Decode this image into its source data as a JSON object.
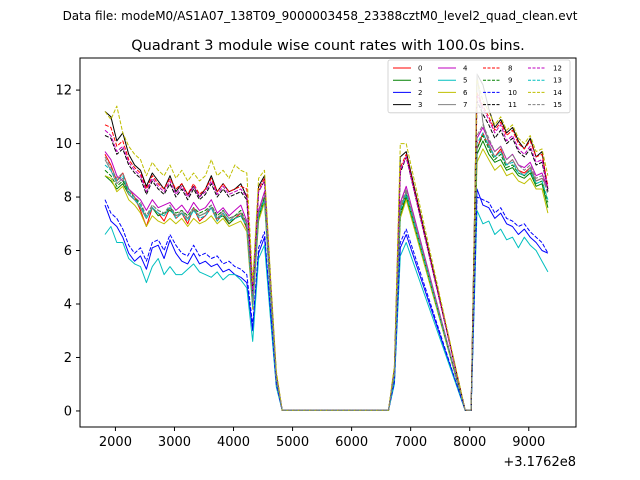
{
  "file_label": "Data file: modeM0/AS1A07_138T09_9000003458_23388cztM0_level2_quad_clean.evt",
  "chart_data": {
    "type": "line",
    "title": "Quadrant 3 module wise count rates with 100.0s bins.",
    "xlabel": "",
    "ylabel": "",
    "x_offset_label": "+3.1762e8",
    "xlim": [
      1400,
      9800
    ],
    "ylim": [
      -0.6,
      13.2
    ],
    "xticks": [
      2000,
      3000,
      4000,
      5000,
      6000,
      7000,
      8000,
      9000
    ],
    "xtick_labels": [
      "2000",
      "3000",
      "4000",
      "5000",
      "6000",
      "7000",
      "8000",
      "9000"
    ],
    "yticks": [
      0,
      2,
      4,
      6,
      8,
      10,
      12
    ],
    "ytick_labels": [
      "0",
      "2",
      "4",
      "6",
      "8",
      "10",
      "12"
    ],
    "x": [
      1824,
      1924,
      2024,
      2124,
      2224,
      2324,
      2424,
      2524,
      2624,
      2724,
      2824,
      2924,
      3024,
      3124,
      3224,
      3324,
      3424,
      3524,
      3624,
      3724,
      3824,
      3924,
      4024,
      4124,
      4224,
      4324,
      4424,
      4524,
      4624,
      4724,
      4824,
      6624,
      6724,
      6824,
      6924,
      7924,
      8024,
      8124,
      8224,
      8324,
      8424,
      8524,
      8624,
      8724,
      8824,
      8924,
      9024,
      9124,
      9224,
      9324
    ],
    "series": [
      {
        "name": "0",
        "color": "#ff0000",
        "dash": false,
        "values": [
          9.6,
          9.2,
          8.6,
          8.9,
          8.3,
          8.0,
          7.5,
          6.9,
          7.6,
          7.4,
          7.1,
          7.6,
          7.2,
          7.4,
          7.0,
          7.6,
          7.1,
          7.3,
          7.6,
          7.1,
          7.4,
          7.0,
          7.2,
          7.4,
          6.8,
          4.0,
          7.3,
          8.0,
          4.5,
          1.2,
          0.02,
          0.02,
          1.4,
          7.5,
          8.2,
          0.02,
          0.02,
          9.8,
          10.4,
          9.9,
          9.5,
          9.8,
          9.2,
          9.4,
          9.0,
          8.9,
          9.1,
          8.6,
          8.7,
          8.5
        ]
      },
      {
        "name": "1",
        "color": "#008000",
        "dash": false,
        "values": [
          8.8,
          8.6,
          8.3,
          8.5,
          8.1,
          7.9,
          7.6,
          7.2,
          7.6,
          7.3,
          7.4,
          7.5,
          7.3,
          7.4,
          7.2,
          7.5,
          7.3,
          7.4,
          7.6,
          7.2,
          7.3,
          7.0,
          7.2,
          7.3,
          6.9,
          3.9,
          7.2,
          7.9,
          4.4,
          1.2,
          0.02,
          0.02,
          1.3,
          7.3,
          8.0,
          0.02,
          0.02,
          9.6,
          10.1,
          9.6,
          9.3,
          9.4,
          9.0,
          9.1,
          8.8,
          8.7,
          8.9,
          8.4,
          8.5,
          7.6
        ]
      },
      {
        "name": "2",
        "color": "#0000ff",
        "dash": false,
        "values": [
          7.7,
          7.1,
          6.9,
          6.5,
          5.9,
          5.6,
          5.8,
          5.3,
          6.1,
          6.2,
          5.7,
          6.4,
          5.9,
          5.6,
          5.5,
          5.9,
          5.5,
          5.6,
          5.4,
          5.5,
          5.2,
          5.3,
          5.1,
          5.0,
          4.8,
          3.0,
          5.9,
          6.5,
          3.7,
          1.0,
          0.02,
          0.02,
          1.1,
          6.1,
          6.6,
          0.02,
          0.02,
          8.3,
          7.7,
          7.6,
          7.2,
          7.4,
          7.0,
          6.9,
          6.6,
          6.8,
          6.5,
          6.3,
          6.0,
          5.9
        ]
      },
      {
        "name": "3",
        "color": "#000000",
        "dash": false,
        "values": [
          11.2,
          11.0,
          10.1,
          10.4,
          9.6,
          9.2,
          9.0,
          8.4,
          8.9,
          8.6,
          8.3,
          8.8,
          8.2,
          8.5,
          8.1,
          8.4,
          8.0,
          8.3,
          8.8,
          8.2,
          8.5,
          8.2,
          8.3,
          8.5,
          8.0,
          4.6,
          8.4,
          8.8,
          5.0,
          1.4,
          0.02,
          0.02,
          1.6,
          9.5,
          9.7,
          0.02,
          0.02,
          12.6,
          12.2,
          11.3,
          10.6,
          10.9,
          10.4,
          10.6,
          10.1,
          9.8,
          10.2,
          9.5,
          9.7,
          8.2
        ]
      },
      {
        "name": "4",
        "color": "#bf00bf",
        "dash": false,
        "values": [
          9.7,
          9.4,
          8.8,
          8.6,
          8.3,
          8.1,
          7.9,
          7.5,
          7.9,
          7.6,
          7.7,
          7.8,
          7.5,
          7.7,
          7.4,
          7.8,
          7.5,
          7.6,
          7.9,
          7.4,
          7.6,
          7.3,
          7.5,
          7.7,
          7.1,
          4.1,
          7.5,
          8.2,
          4.6,
          1.3,
          0.02,
          0.02,
          1.4,
          7.8,
          8.4,
          0.02,
          0.02,
          10.2,
          10.6,
          10.1,
          9.7,
          9.9,
          9.4,
          9.6,
          9.2,
          9.1,
          9.3,
          8.8,
          8.9,
          8.3
        ]
      },
      {
        "name": "5",
        "color": "#00bfbf",
        "dash": false,
        "values": [
          6.6,
          6.9,
          6.3,
          6.3,
          5.7,
          5.5,
          5.4,
          4.8,
          5.4,
          5.7,
          5.1,
          5.4,
          5.1,
          5.1,
          5.3,
          5.5,
          5.2,
          5.1,
          5.0,
          5.2,
          4.9,
          5.1,
          5.1,
          4.9,
          4.6,
          2.6,
          5.7,
          6.2,
          3.5,
          0.9,
          0.02,
          0.02,
          1.0,
          5.8,
          6.3,
          0.02,
          0.02,
          7.5,
          7.0,
          7.1,
          6.6,
          6.8,
          6.4,
          6.5,
          6.1,
          6.5,
          6.2,
          6.0,
          5.6,
          5.2
        ]
      },
      {
        "name": "6",
        "color": "#bfbf00",
        "dash": false,
        "values": [
          8.8,
          8.7,
          8.2,
          8.4,
          7.9,
          7.7,
          7.4,
          6.9,
          7.3,
          7.1,
          7.0,
          7.2,
          7.0,
          7.2,
          6.9,
          7.2,
          7.0,
          7.1,
          7.3,
          7.0,
          7.2,
          6.9,
          7.0,
          7.1,
          6.7,
          3.8,
          7.1,
          7.8,
          4.3,
          1.1,
          0.02,
          0.02,
          1.3,
          7.2,
          7.9,
          0.02,
          0.02,
          9.3,
          9.8,
          9.4,
          9.0,
          9.2,
          8.8,
          8.9,
          8.6,
          8.5,
          8.7,
          8.3,
          8.3,
          7.4
        ]
      },
      {
        "name": "7",
        "color": "#808080",
        "dash": false,
        "values": [
          9.4,
          9.0,
          8.5,
          8.7,
          8.1,
          7.9,
          7.6,
          7.2,
          7.6,
          7.4,
          7.3,
          7.6,
          7.3,
          7.4,
          7.2,
          7.5,
          7.3,
          7.4,
          7.6,
          7.2,
          7.4,
          7.1,
          7.3,
          7.4,
          7.0,
          4.0,
          7.4,
          8.0,
          4.5,
          1.2,
          0.02,
          0.02,
          1.4,
          7.6,
          8.2,
          0.02,
          0.02,
          12.6,
          10.8,
          10.0,
          9.5,
          9.7,
          9.2,
          9.4,
          9.0,
          8.8,
          9.1,
          8.6,
          8.7,
          8.3
        ]
      },
      {
        "name": "8",
        "color": "#ff0000",
        "dash": true,
        "values": [
          10.7,
          10.6,
          9.9,
          10.1,
          9.4,
          9.1,
          8.9,
          8.3,
          8.8,
          8.5,
          8.3,
          8.7,
          8.3,
          8.5,
          8.1,
          8.5,
          8.1,
          8.3,
          8.7,
          8.2,
          8.5,
          8.2,
          8.3,
          8.4,
          8.3,
          4.5,
          8.3,
          8.7,
          4.9,
          1.4,
          0.02,
          0.02,
          1.5,
          9.1,
          9.6,
          0.02,
          0.02,
          11.9,
          11.4,
          11.0,
          10.5,
          10.8,
          10.3,
          10.5,
          10.0,
          9.8,
          10.1,
          9.5,
          9.6,
          8.4
        ]
      },
      {
        "name": "9",
        "color": "#008000",
        "dash": true,
        "values": [
          9.0,
          8.8,
          8.4,
          8.6,
          8.2,
          8.0,
          7.7,
          7.3,
          7.7,
          7.5,
          7.4,
          7.6,
          7.4,
          7.5,
          7.3,
          7.6,
          7.4,
          7.5,
          7.7,
          7.3,
          7.5,
          7.2,
          7.3,
          7.5,
          7.0,
          4.0,
          7.3,
          8.0,
          4.5,
          1.2,
          0.02,
          0.02,
          1.4,
          7.4,
          8.1,
          0.02,
          0.02,
          9.8,
          10.3,
          9.8,
          9.4,
          9.6,
          9.1,
          9.2,
          8.9,
          8.8,
          9.0,
          8.5,
          8.6,
          7.8
        ]
      },
      {
        "name": "10",
        "color": "#0000ff",
        "dash": true,
        "values": [
          7.9,
          7.4,
          7.2,
          6.8,
          6.2,
          5.9,
          6.1,
          5.6,
          6.3,
          6.4,
          6.0,
          6.6,
          6.2,
          5.9,
          5.8,
          6.2,
          5.8,
          5.9,
          5.7,
          5.8,
          5.5,
          5.6,
          5.4,
          5.3,
          5.1,
          3.2,
          6.1,
          6.7,
          3.8,
          1.0,
          0.02,
          0.02,
          1.1,
          6.3,
          6.8,
          0.02,
          0.02,
          8.0,
          7.9,
          7.8,
          7.4,
          7.6,
          7.2,
          7.1,
          6.9,
          7.0,
          6.7,
          6.5,
          6.3,
          5.9
        ]
      },
      {
        "name": "11",
        "color": "#000000",
        "dash": true,
        "values": [
          10.3,
          10.2,
          9.6,
          9.8,
          9.2,
          8.9,
          8.7,
          8.1,
          8.6,
          8.3,
          8.1,
          8.5,
          8.0,
          8.3,
          7.9,
          8.3,
          7.9,
          8.1,
          8.5,
          8.0,
          8.3,
          8.0,
          8.1,
          8.2,
          7.9,
          4.4,
          8.2,
          8.6,
          4.8,
          1.3,
          0.02,
          0.02,
          1.5,
          8.9,
          9.5,
          0.02,
          0.02,
          11.6,
          11.1,
          10.7,
          10.2,
          10.5,
          10.0,
          10.2,
          9.7,
          9.5,
          9.8,
          9.2,
          9.3,
          8.3
        ]
      },
      {
        "name": "12",
        "color": "#bf00bf",
        "dash": true,
        "values": [
          10.5,
          10.3,
          9.7,
          9.9,
          9.3,
          9.0,
          8.8,
          8.2,
          8.7,
          8.4,
          8.2,
          8.6,
          8.1,
          8.4,
          8.0,
          8.4,
          8.0,
          8.2,
          8.6,
          8.1,
          8.4,
          8.1,
          8.2,
          8.3,
          8.0,
          4.4,
          8.2,
          8.6,
          4.8,
          1.3,
          0.02,
          0.02,
          1.5,
          9.0,
          9.5,
          0.02,
          0.02,
          11.8,
          11.3,
          10.9,
          10.4,
          10.7,
          10.1,
          10.3,
          9.8,
          9.6,
          9.9,
          9.3,
          9.4,
          8.3
        ]
      },
      {
        "name": "13",
        "color": "#00bfbf",
        "dash": true,
        "values": [
          9.2,
          9.0,
          8.6,
          8.8,
          8.2,
          7.9,
          7.7,
          7.2,
          7.6,
          7.4,
          7.3,
          7.6,
          7.2,
          7.4,
          7.1,
          7.5,
          7.2,
          7.3,
          7.6,
          7.1,
          7.4,
          7.1,
          7.2,
          7.3,
          6.9,
          3.9,
          7.3,
          7.9,
          4.4,
          1.2,
          0.02,
          0.02,
          1.3,
          7.5,
          8.1,
          0.02,
          0.02,
          10.0,
          10.4,
          9.9,
          9.5,
          9.7,
          9.2,
          9.3,
          8.9,
          8.8,
          9.0,
          8.5,
          8.6,
          7.9
        ]
      },
      {
        "name": "14",
        "color": "#bfbf00",
        "dash": true,
        "values": [
          11.2,
          10.9,
          11.4,
          10.4,
          9.9,
          9.6,
          9.4,
          8.8,
          9.3,
          9.0,
          8.8,
          9.2,
          8.7,
          9.0,
          8.6,
          8.9,
          8.6,
          8.8,
          9.4,
          8.8,
          9.0,
          8.7,
          9.2,
          9.0,
          8.9,
          4.8,
          8.7,
          9.0,
          5.1,
          1.5,
          0.02,
          0.02,
          1.7,
          10.0,
          10.0,
          0.02,
          0.02,
          12.4,
          11.6,
          11.2,
          10.7,
          11.0,
          10.5,
          10.7,
          10.2,
          10.0,
          10.3,
          9.7,
          9.8,
          8.8
        ]
      },
      {
        "name": "15",
        "color": "#808080",
        "dash": true,
        "values": [
          9.5,
          9.1,
          8.7,
          8.9,
          8.3,
          8.0,
          7.8,
          7.3,
          7.7,
          7.5,
          7.4,
          7.7,
          7.3,
          7.5,
          7.2,
          7.6,
          7.3,
          7.4,
          7.7,
          7.2,
          7.5,
          7.2,
          7.3,
          7.4,
          7.0,
          4.0,
          7.4,
          8.1,
          4.5,
          1.2,
          0.02,
          0.02,
          1.4,
          7.7,
          8.3,
          0.02,
          0.02,
          10.3,
          10.7,
          10.2,
          9.7,
          9.9,
          9.4,
          9.6,
          9.2,
          9.0,
          9.2,
          8.7,
          8.8,
          8.1
        ]
      }
    ],
    "legend": {
      "position": "upper-right",
      "columns": 4
    }
  }
}
